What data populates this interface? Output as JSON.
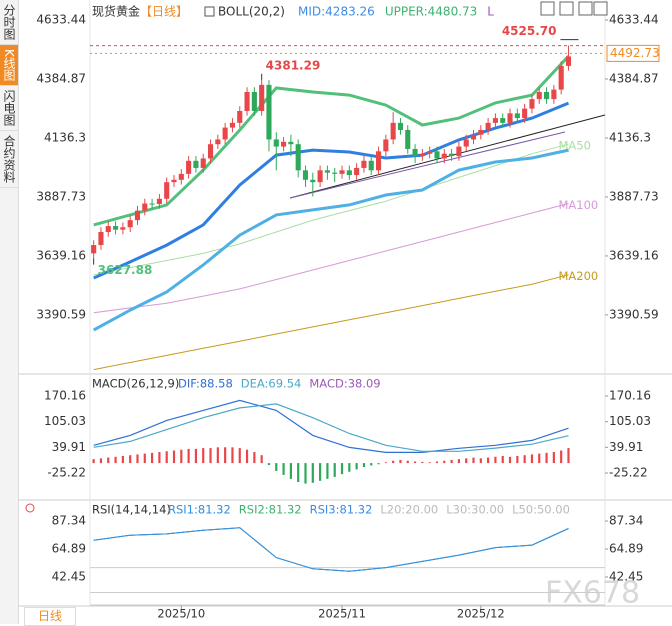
{
  "tabs": [
    "分时图",
    "K线图",
    "闪电图",
    "合约资料"
  ],
  "bottom_tab": "日线",
  "watermark": "FX678",
  "chart_data": [
    {
      "type": "candlestick",
      "title": "现货黄金",
      "period": "【日线】",
      "indicator": "BOLL(20,2)",
      "indicator_values": [
        {
          "text": "MID:4283.26",
          "color": "#3a8ee6"
        },
        {
          "text": "UPPER:4480.73",
          "color": "#3cb371"
        },
        {
          "text": "L",
          "color": "#9b59b6"
        }
      ],
      "xlim": [
        -0.5,
        70
      ],
      "xticks": [
        {
          "value": 12,
          "label": "2025/10"
        },
        {
          "value": 34,
          "label": "2025/11"
        },
        {
          "value": 53,
          "label": "2025/12"
        }
      ],
      "ylim": [
        3150,
        4684
      ],
      "yticks": [
        4633.44,
        4384.87,
        4136.3,
        3887.73,
        3639.16,
        3390.59
      ],
      "up_color": "#e8474a",
      "down_color": "#2ea85a",
      "open": [
        3650,
        3685,
        3740,
        3765,
        3750,
        3760,
        3790,
        3830,
        3860,
        3858,
        3880,
        3950,
        3960,
        3985,
        4040,
        4010,
        4050,
        4110,
        4130,
        4180,
        4200,
        4250,
        4330,
        4250,
        4360,
        4130,
        4100,
        4120,
        4110,
        4000,
        3960,
        3950,
        4000,
        3990,
        3985,
        4000,
        3980,
        4010,
        4040,
        4000,
        4080,
        4130,
        4200,
        4170,
        4090,
        4060,
        4070,
        4080,
        4050,
        4070,
        4060,
        4100,
        4130,
        4150,
        4170,
        4200,
        4220,
        4200,
        4240,
        4220,
        4260,
        4300,
        4330,
        4300,
        4340,
        4440
      ],
      "high": [
        3705,
        3760,
        3785,
        3785,
        3780,
        3810,
        3850,
        3880,
        3880,
        3900,
        3970,
        3980,
        4005,
        4060,
        4060,
        4070,
        4130,
        4150,
        4200,
        4220,
        4270,
        4350,
        4350,
        4381.29,
        4380,
        4160,
        4140,
        4150,
        4130,
        4020,
        3990,
        4020,
        4020,
        4010,
        4020,
        4020,
        4030,
        4060,
        4060,
        4100,
        4150,
        4245,
        4220,
        4190,
        4110,
        4090,
        4100,
        4100,
        4090,
        4090,
        4120,
        4150,
        4170,
        4190,
        4220,
        4240,
        4240,
        4260,
        4260,
        4280,
        4320,
        4350,
        4350,
        4360,
        4460,
        4525.7
      ],
      "low": [
        3627.88,
        3665,
        3720,
        3730,
        3730,
        3740,
        3770,
        3810,
        3838,
        3838,
        3860,
        3930,
        3940,
        3965,
        3990,
        3990,
        4030,
        4090,
        4110,
        4160,
        4180,
        4230,
        4230,
        4230,
        4080,
        4000,
        4080,
        4060,
        3970,
        3930,
        3890,
        3930,
        3960,
        3950,
        3965,
        3960,
        3960,
        3990,
        3980,
        3980,
        4060,
        4110,
        4150,
        4070,
        4030,
        4040,
        4050,
        4030,
        4030,
        4040,
        4040,
        4080,
        4110,
        4130,
        4150,
        4180,
        4180,
        4180,
        4200,
        4200,
        4240,
        4280,
        4280,
        4280,
        4320,
        4420
      ],
      "close": [
        3685,
        3740,
        3765,
        3750,
        3760,
        3790,
        3830,
        3860,
        3858,
        3880,
        3950,
        3960,
        3985,
        4040,
        4010,
        4050,
        4110,
        4130,
        4180,
        4200,
        4250,
        4330,
        4250,
        4360,
        4130,
        4100,
        4120,
        4110,
        4000,
        3960,
        3950,
        4000,
        3990,
        3985,
        4000,
        3980,
        4010,
        4040,
        4000,
        4080,
        4130,
        4200,
        4170,
        4090,
        4060,
        4070,
        4080,
        4050,
        4070,
        4060,
        4100,
        4130,
        4150,
        4170,
        4200,
        4220,
        4200,
        4240,
        4220,
        4260,
        4300,
        4330,
        4300,
        4340,
        4440,
        4480
      ],
      "line_x": [
        0,
        5,
        10,
        15,
        20,
        25,
        30,
        35,
        40,
        45,
        50,
        55,
        60,
        65
      ],
      "series": [
        {
          "color": "#c89a1e",
          "width": 1,
          "label": "MA200",
          "values": [
            3160,
            3190,
            3220,
            3250,
            3280,
            3310,
            3340,
            3370,
            3400,
            3430,
            3460,
            3490,
            3520,
            3560
          ]
        },
        {
          "color": "#d79ad8",
          "width": 1,
          "label": "MA100",
          "values": [
            3400,
            3420,
            3440,
            3470,
            3500,
            3540,
            3580,
            3620,
            3660,
            3700,
            3740,
            3780,
            3820,
            3860
          ]
        },
        {
          "color": "#a8e0a0",
          "width": 1,
          "label": "MA50",
          "values": [
            3560,
            3590,
            3620,
            3650,
            3690,
            3740,
            3790,
            3830,
            3870,
            3920,
            3970,
            4020,
            4070,
            4110
          ]
        },
        {
          "color": "#4fb0e6",
          "width": 3,
          "values": [
            3327,
            3411,
            3487,
            3601,
            3727,
            3812,
            3833,
            3854,
            3896,
            3917,
            4001,
            4035,
            4052,
            4085
          ]
        },
        {
          "color": "#2e7fe0",
          "width": 3,
          "values": [
            3546,
            3614,
            3685,
            3770,
            3938,
            4064,
            4085,
            4077,
            4052,
            4064,
            4128,
            4178,
            4220,
            4283.26
          ]
        },
        {
          "color": "#52c07a",
          "width": 3,
          "values": [
            3770,
            3812,
            3854,
            4001,
            4170,
            4347,
            4330,
            4317,
            4275,
            4191,
            4220,
            4284,
            4317,
            4480.73
          ]
        }
      ],
      "annotations": [
        {
          "value": 4525.7,
          "label": "4525.70",
          "x": 65,
          "color": "#e8474a",
          "dashed": true
        },
        {
          "value": 4381.29,
          "x": 23,
          "color": "#e8474a"
        },
        {
          "value": 3627.88,
          "x": 0,
          "color": "#52c07a"
        }
      ],
      "last_price": 4492.73
    },
    {
      "type": "macd",
      "title": "MACD(26,12,9)",
      "xlim": [
        -0.5,
        70
      ],
      "ylim": [
        -93.6,
        218.3
      ],
      "yticks": [
        170.16,
        105.03,
        39.91,
        -25.22
      ],
      "line_x": [
        0,
        5,
        10,
        15,
        20,
        25,
        30,
        35,
        40,
        45,
        50,
        55,
        60,
        65
      ],
      "series": [
        {
          "legend": "DIF:88.58",
          "color": "#2f6fd6",
          "values": [
            44.98,
            70.3,
            108.3,
            133.7,
            159,
            133.7,
            70.3,
            39.9,
            27.2,
            27.2,
            37.4,
            45,
            57.6,
            88.58
          ]
        },
        {
          "legend": "DEA:69.54",
          "color": "#4aa8c8",
          "values": [
            40,
            55,
            85,
            115,
            140,
            150,
            115,
            75,
            45,
            30,
            30,
            38,
            48,
            69.54
          ]
        }
      ],
      "bars": {
        "legend": "MACD:38.09",
        "up_color": "#e8474a",
        "down_color": "#2ea85a",
        "values": [
          10,
          12,
          14,
          16,
          18,
          20,
          22,
          24,
          26,
          28,
          30,
          32,
          34,
          36,
          36,
          38,
          38,
          40,
          40,
          40,
          38,
          34,
          28,
          20,
          -5,
          -20,
          -30,
          -40,
          -48,
          -52,
          -50,
          -45,
          -40,
          -35,
          -28,
          -22,
          -16,
          -10,
          -6,
          -3,
          2,
          6,
          8,
          6,
          4,
          3,
          2,
          4,
          6,
          8,
          10,
          12,
          14,
          12,
          14,
          16,
          18,
          16,
          18,
          20,
          22,
          24,
          26,
          28,
          32,
          38.09
        ]
      }
    },
    {
      "type": "rsi",
      "title": "RSI(14,14,14)",
      "legend_extra": [
        "L20:20.00",
        "L30:30.00",
        "L50:50.00"
      ],
      "levels": [
        20,
        30,
        50
      ],
      "xlim": [
        -0.5,
        70
      ],
      "ylim": [
        20,
        104.2
      ],
      "yticks": [
        87.34,
        64.89,
        42.45
      ],
      "line_x": [
        0,
        5,
        10,
        15,
        20,
        25,
        30,
        35,
        40,
        45,
        50,
        55,
        60,
        65
      ],
      "series": [
        {
          "legend": "RSI1:81.32",
          "color": "#2f8fe0",
          "values": [
            72,
            76,
            77,
            80,
            82,
            58,
            49,
            47,
            50,
            55,
            60,
            66,
            68,
            81.32
          ]
        },
        {
          "legend": "RSI2:81.32",
          "color": "#3cb371",
          "values": [
            72,
            76,
            77,
            80,
            82,
            58,
            49,
            47,
            50,
            55,
            60,
            66,
            68,
            81.32
          ]
        },
        {
          "legend": "RSI3:81.32",
          "color": "#3a8ee6",
          "values": [
            72,
            76,
            77,
            80,
            82,
            58,
            49,
            47,
            50,
            55,
            60,
            66,
            68,
            81.32
          ]
        }
      ]
    }
  ]
}
